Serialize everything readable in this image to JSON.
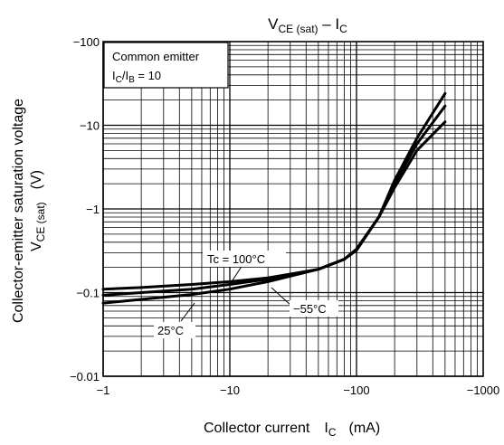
{
  "chart_data": {
    "type": "line",
    "title": {
      "main": "V",
      "main_sub": "CE (sat)",
      "sep": " – I",
      "sep_sub": "C"
    },
    "xlabel": {
      "text": "Collector current",
      "sym": "I",
      "sym_sub": "C",
      "unit": "(mA)"
    },
    "ylabel": {
      "line1": "Collector-emitter saturation voltage",
      "sym": "V",
      "sym_sub": "CE (sat)",
      "unit": "(V)"
    },
    "x_scale": "log",
    "y_scale": "log",
    "xlim": [
      -1,
      -1000
    ],
    "ylim": [
      -0.01,
      -100
    ],
    "x_ticks": [
      {
        "value": -1,
        "label": "−1"
      },
      {
        "value": -10,
        "label": "−10"
      },
      {
        "value": -100,
        "label": "−100"
      },
      {
        "value": -1000,
        "label": "−1000"
      }
    ],
    "y_ticks": [
      {
        "value": -0.01,
        "label": "−0.01"
      },
      {
        "value": -0.1,
        "label": "−0.1"
      },
      {
        "value": -1,
        "label": "−1"
      },
      {
        "value": -10,
        "label": "−10"
      },
      {
        "value": -100,
        "label": "−100"
      }
    ],
    "grid": true,
    "conditions": {
      "line1": "Common emitter",
      "ratio_a": "I",
      "ratio_a_sub": "C",
      "ratio_sep": "/I",
      "ratio_b_sub": "B",
      "ratio_val": " = 10"
    },
    "series": [
      {
        "name": "Tc = 100°C",
        "x": [
          -1,
          -2,
          -5,
          -10,
          -20,
          -50,
          -80,
          -100,
          -150,
          -200,
          -300,
          -500
        ],
        "y": [
          -0.11,
          -0.115,
          -0.125,
          -0.135,
          -0.15,
          -0.19,
          -0.25,
          -0.33,
          -0.8,
          -1.8,
          -5.0,
          -11.0
        ]
      },
      {
        "name": "25°C",
        "x": [
          -1,
          -2,
          -5,
          -10,
          -20,
          -50,
          -80,
          -100,
          -150,
          -200,
          -300,
          -500
        ],
        "y": [
          -0.093,
          -0.1,
          -0.11,
          -0.125,
          -0.145,
          -0.19,
          -0.25,
          -0.32,
          -0.8,
          -2.0,
          -6.0,
          -17.0
        ]
      },
      {
        "name": "−55°C",
        "x": [
          -1,
          -2,
          -5,
          -10,
          -20,
          -50,
          -80,
          -100,
          -150,
          -200,
          -300,
          -500
        ],
        "y": [
          -0.075,
          -0.083,
          -0.095,
          -0.11,
          -0.135,
          -0.19,
          -0.25,
          -0.33,
          -0.8,
          -2.2,
          -7.0,
          -24.0
        ]
      }
    ],
    "annotations": [
      {
        "series": 0,
        "label": "Tc = 100°C"
      },
      {
        "series": 1,
        "label": "25°C"
      },
      {
        "series": 2,
        "label": "−55°C"
      }
    ]
  }
}
